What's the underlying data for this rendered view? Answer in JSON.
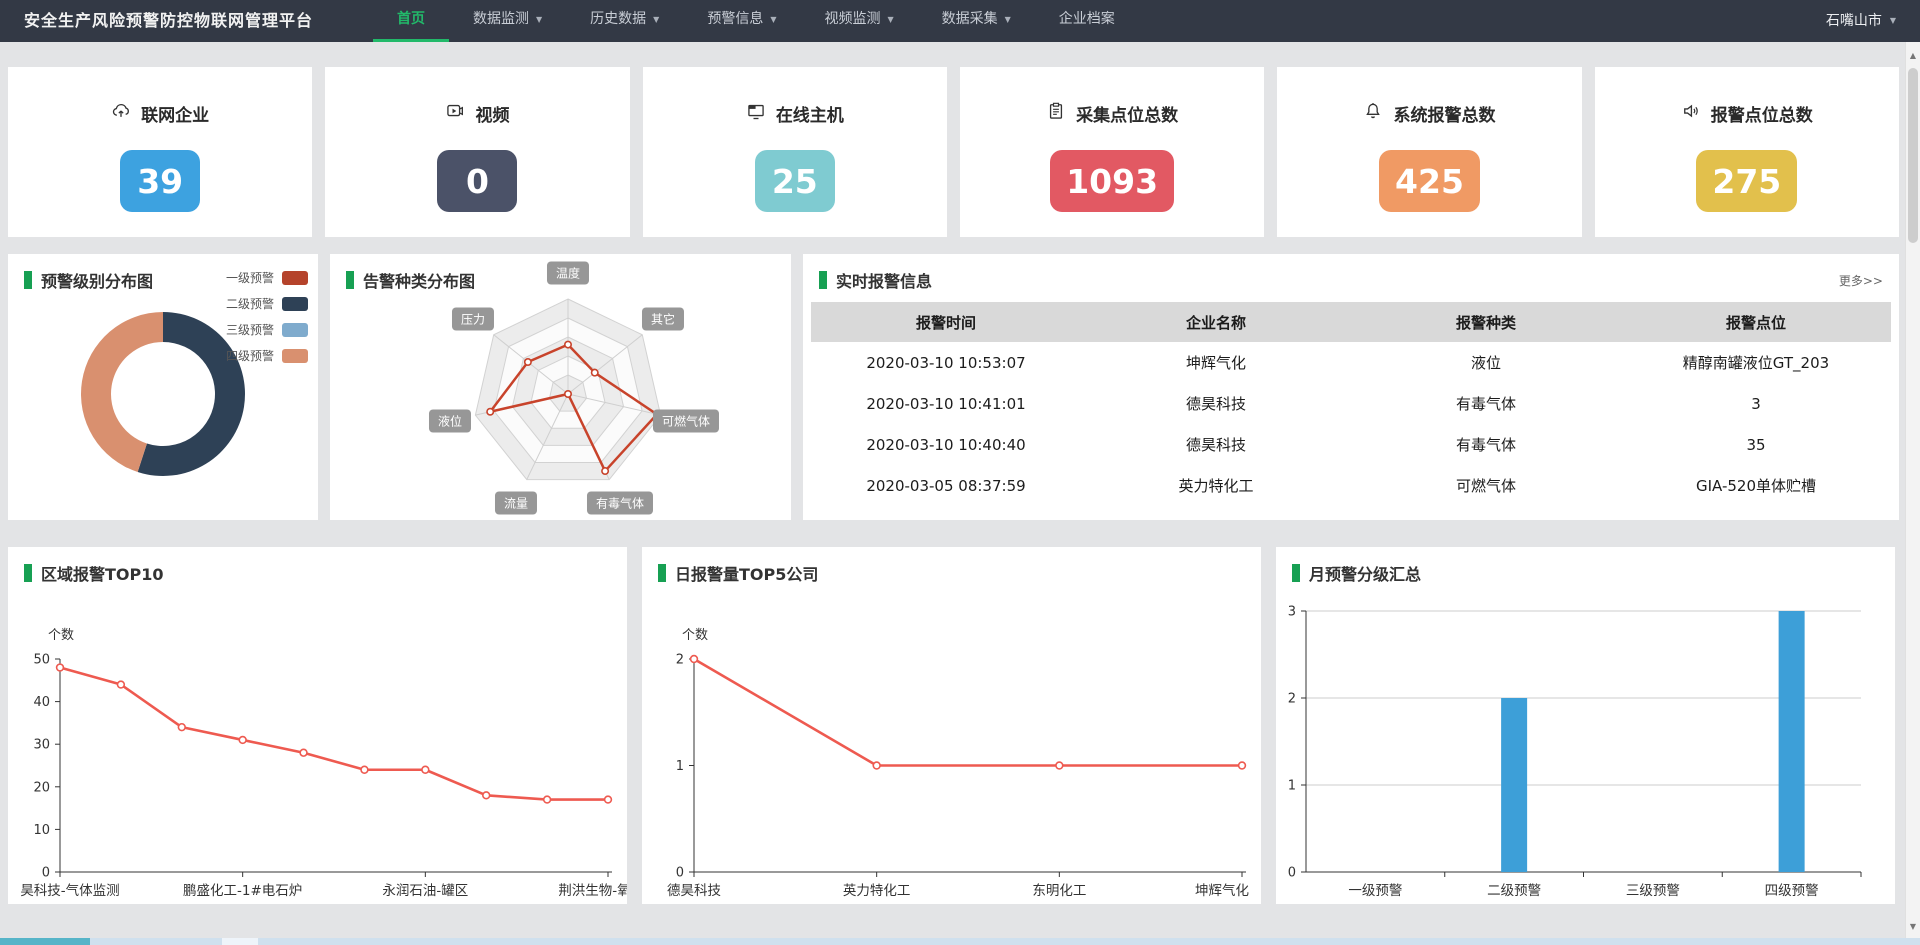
{
  "nav": {
    "title": "安全生产风险预警防控物联网管理平台",
    "items": [
      {
        "label": "首页",
        "active": true,
        "caret": false
      },
      {
        "label": "数据监测",
        "active": false,
        "caret": true
      },
      {
        "label": "历史数据",
        "active": false,
        "caret": true
      },
      {
        "label": "预警信息",
        "active": false,
        "caret": true
      },
      {
        "label": "视频监测",
        "active": false,
        "caret": true
      },
      {
        "label": "数据采集",
        "active": false,
        "caret": true
      },
      {
        "label": "企业档案",
        "active": false,
        "caret": false
      }
    ],
    "region": "石嘴山市",
    "region_caret_icon": "chevron-down-icon",
    "accent_color": "#22b96a"
  },
  "stats": [
    {
      "label": "联网企业",
      "value": "39",
      "color": "#3da2e0",
      "icon": "cloud-upload-icon"
    },
    {
      "label": "视频",
      "value": "0",
      "color": "#4b5268",
      "icon": "video-icon"
    },
    {
      "label": "在线主机",
      "value": "25",
      "color": "#7fcbd1",
      "icon": "monitor-icon"
    },
    {
      "label": "采集点位总数",
      "value": "1093",
      "color": "#e25963",
      "icon": "clipboard-icon"
    },
    {
      "label": "系统报警总数",
      "value": "425",
      "color": "#f09a64",
      "icon": "bell-icon"
    },
    {
      "label": "报警点位总数",
      "value": "275",
      "color": "#e2c04c",
      "icon": "speaker-icon"
    }
  ],
  "panels": {
    "level_pie": {
      "title": "预警级别分布图",
      "legend": [
        {
          "label": "一级预警",
          "color": "#b5432b"
        },
        {
          "label": "二级预警",
          "color": "#2e4156"
        },
        {
          "label": "三级预警",
          "color": "#7fabcd"
        },
        {
          "label": "四级预警",
          "color": "#d9906f"
        }
      ]
    },
    "radar": {
      "title": "告警种类分布图"
    },
    "realtime": {
      "title": "实时报警信息",
      "more": "更多>>",
      "headers": [
        "报警时间",
        "企业名称",
        "报警种类",
        "报警点位"
      ],
      "rows": [
        [
          "2020-03-10 10:53:07",
          "坤辉气化",
          "液位",
          "精醇南罐液位GT_203"
        ],
        [
          "2020-03-10 10:41:01",
          "德昊科技",
          "有毒气体",
          "3"
        ],
        [
          "2020-03-10 10:40:40",
          "德昊科技",
          "有毒气体",
          "35"
        ],
        [
          "2020-03-05 08:37:59",
          "英力特化工",
          "可燃气体",
          "GIA-520单体贮槽"
        ]
      ]
    },
    "top10": {
      "title": "区域报警TOP10"
    },
    "top5": {
      "title": "日报警量TOP5公司"
    },
    "monthly": {
      "title": "月预警分级汇总"
    }
  },
  "chart_data": [
    {
      "type": "pie",
      "title": "预警级别分布图",
      "style": "donut",
      "labels": [
        "一级预警",
        "二级预警",
        "三级预警",
        "四级预警"
      ],
      "values_pct": [
        0,
        55,
        0,
        45
      ],
      "colors": [
        "#b5432b",
        "#2e4156",
        "#7fabcd",
        "#d9906f"
      ],
      "legend_position": "top-right"
    },
    {
      "type": "radar",
      "title": "告警种类分布图",
      "indicators": [
        "温度",
        "其它",
        "可燃气体",
        "有毒气体",
        "流量",
        "液位",
        "压力"
      ],
      "values": [
        2.6,
        1.8,
        4.8,
        4.5,
        0,
        4.2,
        2.7
      ],
      "max": 5,
      "rings": 5,
      "line_color": "#c8432b"
    },
    {
      "type": "line",
      "title": "区域报警TOP10",
      "ylabel": "个数",
      "yticks": [
        0,
        10,
        20,
        30,
        40,
        50
      ],
      "ylim": [
        0,
        50
      ],
      "values": [
        48,
        44,
        34,
        31,
        28,
        24,
        24,
        18,
        17,
        17
      ],
      "categories_visible": [
        {
          "index": 0,
          "label": "昊科技-气体监测"
        },
        {
          "index": 3,
          "label": "鹏盛化工-1#电石炉"
        },
        {
          "index": 6,
          "label": "永润石油-罐区"
        },
        {
          "index": 9,
          "label": "荆洪生物-氧化反"
        }
      ],
      "line_color": "#ee5a50"
    },
    {
      "type": "line",
      "title": "日报警量TOP5公司",
      "ylabel": "个数",
      "yticks": [
        0,
        1,
        2
      ],
      "ylim": [
        0,
        2
      ],
      "categories": [
        "德昊科技",
        "英力特化工",
        "东明化工",
        "坤辉气化"
      ],
      "values": [
        2,
        1,
        1,
        1
      ],
      "line_color": "#ee5a50"
    },
    {
      "type": "bar",
      "title": "月预警分级汇总",
      "categories": [
        "一级预警",
        "二级预警",
        "三级预警",
        "四级预警"
      ],
      "values": [
        0,
        2,
        0,
        3
      ],
      "yticks": [
        0,
        1,
        2,
        3
      ],
      "ylim": [
        0,
        3
      ],
      "bar_color": "#3d9fd8",
      "grid": true
    }
  ]
}
